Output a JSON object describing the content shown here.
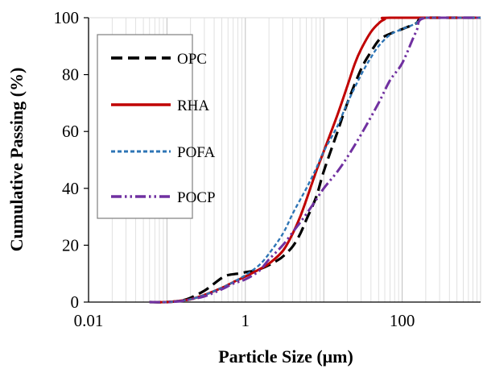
{
  "chart_data": {
    "type": "line",
    "xlabel": "Particle Size (μm)",
    "ylabel": "Cumulative Passing (%)",
    "xscale": "log",
    "xlim": [
      0.01,
      1000
    ],
    "ylim": [
      0,
      100
    ],
    "x_ticks": [
      0.01,
      1,
      100
    ],
    "x_tick_labels": [
      "0.01",
      "1",
      "100"
    ],
    "y_ticks": [
      0,
      20,
      40,
      60,
      80,
      100
    ],
    "y_tick_labels": [
      "0",
      "20",
      "40",
      "60",
      "80",
      "100"
    ],
    "grid": "vertical log gridlines",
    "legend_position": "top-left",
    "series": [
      {
        "name": "OPC",
        "color": "#000000",
        "style": "long-dash",
        "points": [
          [
            0.06,
            0
          ],
          [
            0.1,
            0
          ],
          [
            0.15,
            0.5
          ],
          [
            0.2,
            1.5
          ],
          [
            0.3,
            4
          ],
          [
            0.4,
            6.5
          ],
          [
            0.5,
            8.5
          ],
          [
            0.6,
            9.5
          ],
          [
            0.8,
            10
          ],
          [
            1,
            10.5
          ],
          [
            1.3,
            11
          ],
          [
            1.6,
            11.8
          ],
          [
            2,
            13
          ],
          [
            2.5,
            14.5
          ],
          [
            3,
            16
          ],
          [
            4,
            19.5
          ],
          [
            5,
            24
          ],
          [
            6,
            29
          ],
          [
            8,
            37
          ],
          [
            10,
            46
          ],
          [
            15,
            60
          ],
          [
            20,
            70
          ],
          [
            30,
            82
          ],
          [
            40,
            88
          ],
          [
            50,
            92
          ],
          [
            60,
            93.5
          ],
          [
            80,
            95
          ],
          [
            100,
            96
          ],
          [
            150,
            98
          ],
          [
            200,
            100
          ],
          [
            1000,
            100
          ]
        ]
      },
      {
        "name": "RHA",
        "color": "#c00000",
        "style": "solid",
        "points": [
          [
            0.06,
            0
          ],
          [
            0.1,
            0
          ],
          [
            0.15,
            0.5
          ],
          [
            0.2,
            1
          ],
          [
            0.3,
            2.5
          ],
          [
            0.5,
            5
          ],
          [
            0.7,
            7
          ],
          [
            1,
            9
          ],
          [
            1.5,
            11.5
          ],
          [
            2,
            13.5
          ],
          [
            3,
            18
          ],
          [
            4,
            24
          ],
          [
            5,
            30
          ],
          [
            6,
            36
          ],
          [
            8,
            46
          ],
          [
            10,
            53
          ],
          [
            15,
            66
          ],
          [
            20,
            76
          ],
          [
            25,
            84
          ],
          [
            30,
            89
          ],
          [
            40,
            95
          ],
          [
            50,
            98
          ],
          [
            60,
            99.5
          ],
          [
            70,
            100
          ],
          [
            1000,
            100
          ]
        ]
      },
      {
        "name": "POFA",
        "color": "#2e75b6",
        "style": "short-dash",
        "points": [
          [
            0.06,
            0
          ],
          [
            0.1,
            0
          ],
          [
            0.15,
            0.5
          ],
          [
            0.2,
            1
          ],
          [
            0.3,
            2.5
          ],
          [
            0.5,
            5
          ],
          [
            0.7,
            7
          ],
          [
            1,
            9.5
          ],
          [
            1.5,
            13
          ],
          [
            2,
            17
          ],
          [
            3,
            24
          ],
          [
            4,
            31
          ],
          [
            5,
            36
          ],
          [
            6,
            40
          ],
          [
            8,
            47
          ],
          [
            10,
            53
          ],
          [
            15,
            62
          ],
          [
            20,
            70
          ],
          [
            30,
            80
          ],
          [
            40,
            86
          ],
          [
            50,
            90
          ],
          [
            70,
            94
          ],
          [
            100,
            96
          ],
          [
            150,
            98
          ],
          [
            200,
            100
          ],
          [
            1000,
            100
          ]
        ]
      },
      {
        "name": "POCP",
        "color": "#7030a0",
        "style": "dash-dot-dot",
        "points": [
          [
            0.06,
            0
          ],
          [
            0.1,
            0
          ],
          [
            0.15,
            0.3
          ],
          [
            0.2,
            1
          ],
          [
            0.3,
            2
          ],
          [
            0.5,
            4.5
          ],
          [
            0.7,
            6.5
          ],
          [
            1,
            8
          ],
          [
            1.5,
            11
          ],
          [
            2,
            15
          ],
          [
            3,
            20
          ],
          [
            4,
            24.5
          ],
          [
            5,
            28
          ],
          [
            6,
            31
          ],
          [
            8,
            36
          ],
          [
            10,
            40
          ],
          [
            15,
            46
          ],
          [
            20,
            51
          ],
          [
            30,
            59
          ],
          [
            50,
            70
          ],
          [
            70,
            78
          ],
          [
            100,
            84
          ],
          [
            150,
            95
          ],
          [
            200,
            100
          ],
          [
            1000,
            100
          ]
        ]
      }
    ]
  }
}
